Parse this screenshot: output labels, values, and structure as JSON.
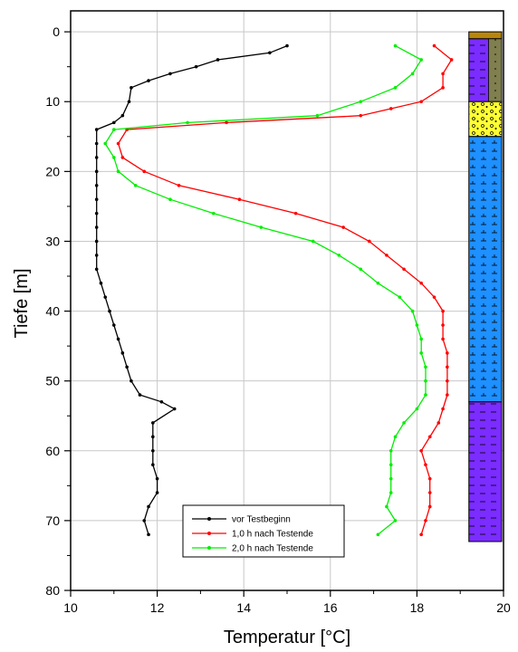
{
  "chart_data": {
    "type": "line",
    "orientation": "depth-profile",
    "xlabel": "Temperatur [°C]",
    "ylabel": "Tiefe [m]",
    "xlim": [
      10,
      20
    ],
    "ylim": [
      80,
      -3
    ],
    "y_inverted": true,
    "x_ticks": [
      10,
      12,
      14,
      16,
      18,
      20
    ],
    "y_ticks": [
      0,
      10,
      20,
      30,
      40,
      50,
      60,
      70,
      80
    ],
    "grid": true,
    "legend_position": "bottom-left",
    "series": [
      {
        "name": "vor Testbeginn",
        "color": "#000000",
        "points": [
          [
            15.0,
            2
          ],
          [
            14.6,
            3
          ],
          [
            13.4,
            4
          ],
          [
            12.9,
            5
          ],
          [
            12.3,
            6
          ],
          [
            11.8,
            7
          ],
          [
            11.4,
            8
          ],
          [
            11.35,
            10
          ],
          [
            11.2,
            12
          ],
          [
            11.0,
            13
          ],
          [
            10.6,
            14
          ],
          [
            10.6,
            16
          ],
          [
            10.6,
            18
          ],
          [
            10.6,
            20
          ],
          [
            10.6,
            22
          ],
          [
            10.6,
            24
          ],
          [
            10.6,
            26
          ],
          [
            10.6,
            28
          ],
          [
            10.6,
            30
          ],
          [
            10.6,
            32
          ],
          [
            10.6,
            34
          ],
          [
            10.7,
            36
          ],
          [
            10.8,
            38
          ],
          [
            10.9,
            40
          ],
          [
            11.0,
            42
          ],
          [
            11.1,
            44
          ],
          [
            11.2,
            46
          ],
          [
            11.3,
            48
          ],
          [
            11.4,
            50
          ],
          [
            11.6,
            52
          ],
          [
            12.1,
            53
          ],
          [
            12.4,
            54
          ],
          [
            11.9,
            56
          ],
          [
            11.9,
            58
          ],
          [
            11.9,
            60
          ],
          [
            11.9,
            62
          ],
          [
            12.0,
            64
          ],
          [
            12.0,
            66
          ],
          [
            11.8,
            68
          ],
          [
            11.7,
            70
          ],
          [
            11.8,
            72
          ]
        ]
      },
      {
        "name": "1,0 h nach Testende",
        "color": "#ff0000",
        "points": [
          [
            18.4,
            2
          ],
          [
            18.8,
            4
          ],
          [
            18.6,
            6
          ],
          [
            18.6,
            8
          ],
          [
            18.1,
            10
          ],
          [
            17.4,
            11
          ],
          [
            16.7,
            12
          ],
          [
            13.6,
            13
          ],
          [
            11.3,
            14
          ],
          [
            11.1,
            16
          ],
          [
            11.2,
            18
          ],
          [
            11.7,
            20
          ],
          [
            12.5,
            22
          ],
          [
            13.9,
            24
          ],
          [
            15.2,
            26
          ],
          [
            16.3,
            28
          ],
          [
            16.9,
            30
          ],
          [
            17.3,
            32
          ],
          [
            17.7,
            34
          ],
          [
            18.1,
            36
          ],
          [
            18.4,
            38
          ],
          [
            18.6,
            40
          ],
          [
            18.6,
            42
          ],
          [
            18.6,
            44
          ],
          [
            18.7,
            46
          ],
          [
            18.7,
            48
          ],
          [
            18.7,
            50
          ],
          [
            18.7,
            52
          ],
          [
            18.6,
            54
          ],
          [
            18.5,
            56
          ],
          [
            18.3,
            58
          ],
          [
            18.1,
            60
          ],
          [
            18.2,
            62
          ],
          [
            18.3,
            64
          ],
          [
            18.3,
            66
          ],
          [
            18.3,
            68
          ],
          [
            18.2,
            70
          ],
          [
            18.1,
            72
          ]
        ]
      },
      {
        "name": "2,0 h nach Testende",
        "color": "#00ee00",
        "points": [
          [
            17.5,
            2
          ],
          [
            18.1,
            4
          ],
          [
            17.9,
            6
          ],
          [
            17.5,
            8
          ],
          [
            16.7,
            10
          ],
          [
            15.7,
            12
          ],
          [
            12.7,
            13
          ],
          [
            11.0,
            14
          ],
          [
            10.8,
            16
          ],
          [
            11.0,
            18
          ],
          [
            11.1,
            20
          ],
          [
            11.5,
            22
          ],
          [
            12.3,
            24
          ],
          [
            13.3,
            26
          ],
          [
            14.4,
            28
          ],
          [
            15.6,
            30
          ],
          [
            16.2,
            32
          ],
          [
            16.7,
            34
          ],
          [
            17.1,
            36
          ],
          [
            17.6,
            38
          ],
          [
            17.9,
            40
          ],
          [
            18.0,
            42
          ],
          [
            18.1,
            44
          ],
          [
            18.1,
            46
          ],
          [
            18.2,
            48
          ],
          [
            18.2,
            50
          ],
          [
            18.2,
            52
          ],
          [
            18.0,
            54
          ],
          [
            17.7,
            56
          ],
          [
            17.5,
            58
          ],
          [
            17.4,
            60
          ],
          [
            17.4,
            62
          ],
          [
            17.4,
            64
          ],
          [
            17.4,
            66
          ],
          [
            17.3,
            68
          ],
          [
            17.5,
            70
          ],
          [
            17.1,
            72
          ]
        ]
      }
    ],
    "lithology_column": {
      "x_range": [
        19.2,
        20
      ],
      "layers": [
        {
          "from": 0,
          "to": 1,
          "color": "#b8860b",
          "pattern": "topsoil"
        },
        {
          "from": 1,
          "to": 10,
          "color": "#7b2cff",
          "pattern": "dashes",
          "right_color": "#7f7f4f"
        },
        {
          "from": 10,
          "to": 15,
          "color": "#ffff33",
          "pattern": "gravel"
        },
        {
          "from": 15,
          "to": 53,
          "color": "#1e90ff",
          "pattern": "ticks"
        },
        {
          "from": 53,
          "to": 73,
          "color": "#7b2cff",
          "pattern": "dashes"
        }
      ]
    }
  }
}
